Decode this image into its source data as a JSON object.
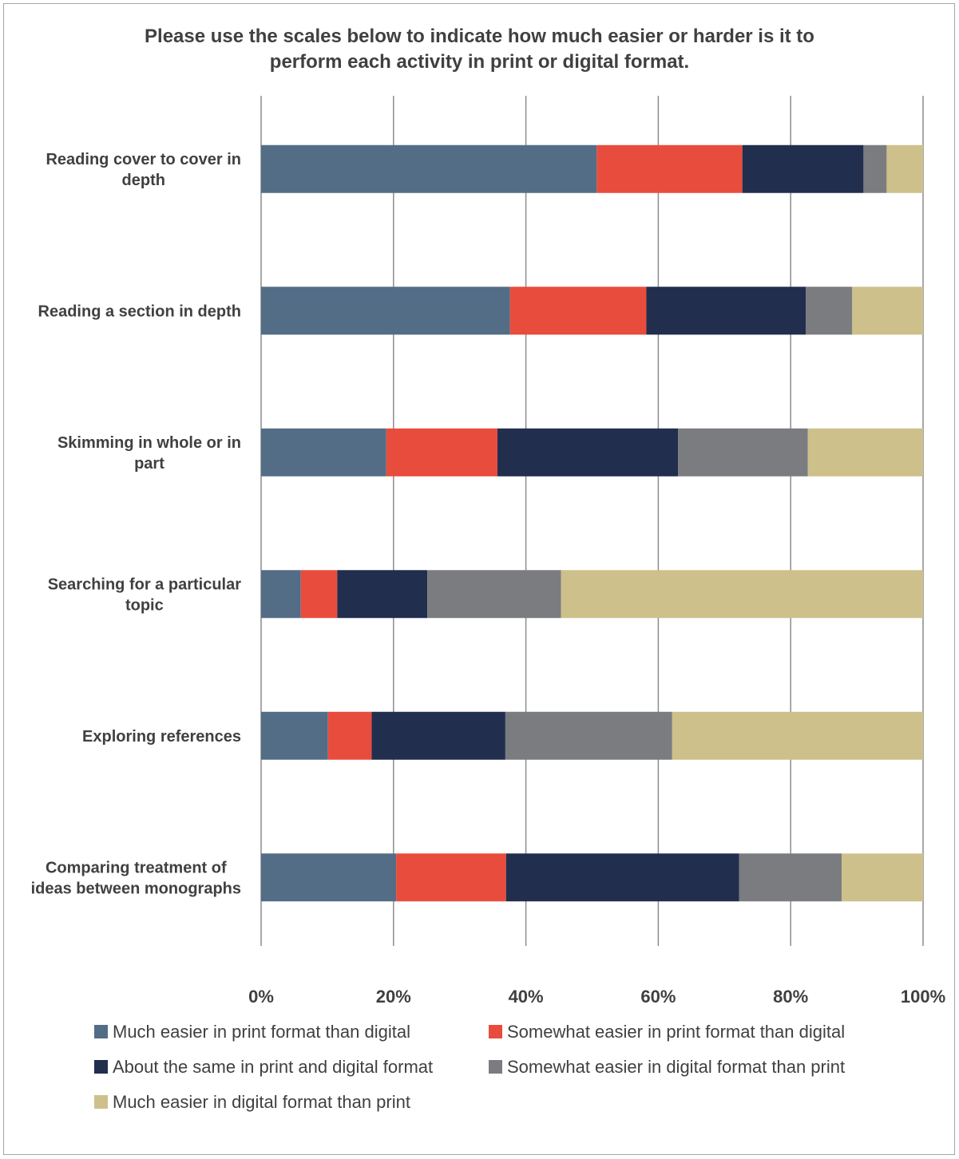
{
  "chart_data": {
    "type": "bar",
    "orientation": "horizontal",
    "stacked": "percent",
    "title_lines": [
      "Please use the scales below to indicate how much easier or harder is it to",
      "perform each activity in print or digital format."
    ],
    "categories": [
      [
        "Reading cover to cover in",
        "depth"
      ],
      [
        "Reading a section in depth"
      ],
      [
        "Skimming in whole or in",
        "part"
      ],
      [
        "Searching for a particular",
        "topic"
      ],
      [
        "Exploring references"
      ],
      [
        "Comparing treatment of",
        "ideas between monographs"
      ]
    ],
    "series": [
      {
        "name": "Much easier in print format than digital",
        "color": "#536d87",
        "values": [
          50.7,
          37.6,
          18.9,
          6.0,
          10.1,
          20.4
        ]
      },
      {
        "name": "Somewhat easier in print format than digital",
        "color": "#e84c3d",
        "values": [
          22.0,
          20.6,
          16.8,
          5.5,
          6.6,
          16.6
        ]
      },
      {
        "name": "About the same in print and digital format",
        "color": "#222e4e",
        "values": [
          18.3,
          24.1,
          27.3,
          13.6,
          20.2,
          35.2
        ]
      },
      {
        "name": "Somewhat easier in digital format than print",
        "color": "#7b7c80",
        "values": [
          3.5,
          7.0,
          19.6,
          20.2,
          25.2,
          15.5
        ]
      },
      {
        "name": "Much easier in digital format than print",
        "color": "#cdc08a",
        "values": [
          5.5,
          10.7,
          17.4,
          54.7,
          37.9,
          12.3
        ]
      }
    ],
    "xlim": [
      0,
      100
    ],
    "x_ticks": [
      "0%",
      "20%",
      "40%",
      "60%",
      "80%",
      "100%"
    ],
    "x_tick_values": [
      0,
      20,
      40,
      60,
      80,
      100
    ],
    "grid": true,
    "legend_position": "bottom"
  }
}
